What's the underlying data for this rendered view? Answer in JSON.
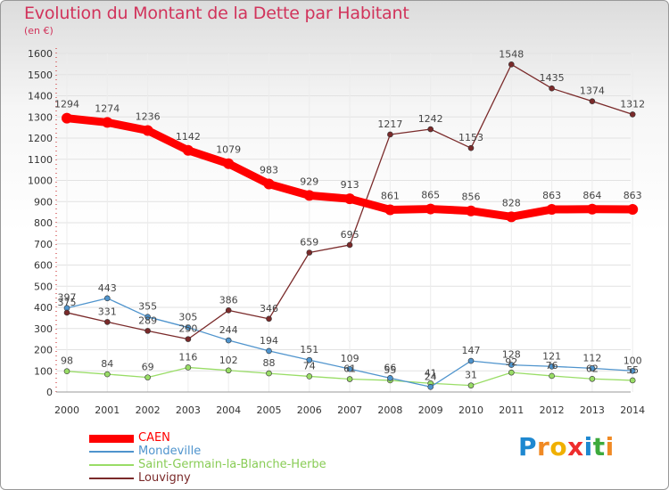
{
  "page": {
    "title": "Evolution du Montant de la Dette par Habitant",
    "subtitle": "(en €)",
    "logo_text": "Proxiti"
  },
  "colors": {
    "title": "#d1335b",
    "caen": "#ff0000",
    "mondeville": "#4f94cd",
    "saint_germain": "#99dd66",
    "louvigny": "#7a2a2a"
  },
  "chart_data": {
    "type": "line",
    "title": "Evolution du Montant de la Dette par Habitant",
    "ylabel": "(en €)",
    "ylim": [
      0,
      1600
    ],
    "yticks": [
      0,
      100,
      200,
      300,
      400,
      500,
      600,
      700,
      800,
      900,
      1000,
      1100,
      1200,
      1300,
      1400,
      1500,
      1600
    ],
    "categories": [
      "2000",
      "2001",
      "2002",
      "2003",
      "2004",
      "2005",
      "2006",
      "2007",
      "2008",
      "2009",
      "2010",
      "2011",
      "2012",
      "2013",
      "2014"
    ],
    "grid": true,
    "legend_position": "bottom-left",
    "series": [
      {
        "name": "CAEN",
        "color": "#ff0000",
        "values": [
          1294,
          1274,
          1236,
          1142,
          1079,
          983,
          929,
          913,
          861,
          865,
          856,
          828,
          863,
          864,
          863
        ]
      },
      {
        "name": "Mondeville",
        "color": "#4f94cd",
        "values": [
          397,
          443,
          355,
          305,
          244,
          194,
          151,
          109,
          66,
          24,
          147,
          128,
          121,
          112,
          100
        ]
      },
      {
        "name": "Saint-Germain-la-Blanche-Herbe",
        "color": "#99dd66",
        "values": [
          98,
          84,
          69,
          116,
          102,
          88,
          74,
          61,
          55,
          41,
          31,
          92,
          76,
          62,
          55
        ]
      },
      {
        "name": "Louvigny",
        "color": "#7a2a2a",
        "values": [
          375,
          331,
          289,
          250,
          386,
          346,
          659,
          695,
          1217,
          1242,
          1153,
          1548,
          1435,
          1374,
          1312
        ]
      }
    ]
  }
}
